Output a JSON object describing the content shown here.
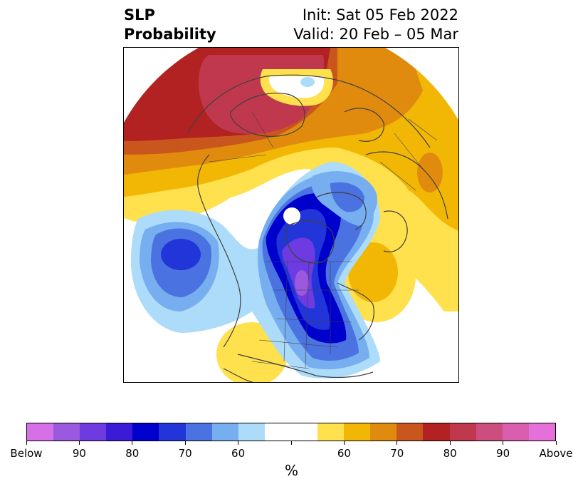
{
  "title": {
    "left_line1": "SLP",
    "left_line2": "Probability",
    "right_line1": "Init: Sat 05 Feb 2022",
    "right_line2": "Valid: 20 Feb – 05 Mar"
  },
  "colorbar": {
    "unit": "%",
    "colors": [
      "#d570e6",
      "#9b59e0",
      "#6d3be0",
      "#3b1bd6",
      "#0000cc",
      "#2235d9",
      "#4a72e0",
      "#76aef0",
      "#acdcfa",
      "#ffffff",
      "#ffffff",
      "#ffe04d",
      "#f2b705",
      "#e08b0e",
      "#c9561c",
      "#b22222",
      "#c0384e",
      "#cb4e7e",
      "#d95fae",
      "#e670d9"
    ],
    "ticks": [
      "Below",
      "90",
      "80",
      "70",
      "60",
      "",
      "60",
      "70",
      "80",
      "90",
      "Above"
    ]
  },
  "map": {
    "category_below_colors": {
      "60": "#acdcfa",
      "70": "#4a72e0",
      "80": "#0000cc",
      "90": "#6d3be0"
    },
    "category_above_colors": {
      "60": "#ffe04d",
      "70": "#e08b0e",
      "80": "#b22222",
      "90": "#c0384e"
    }
  }
}
